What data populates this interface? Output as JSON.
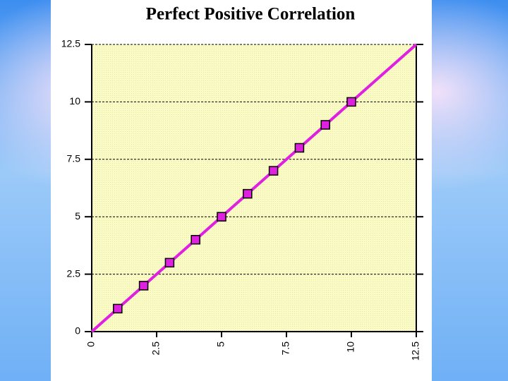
{
  "chart_data": {
    "type": "scatter",
    "title": "Perfect Positive Correlation",
    "x": [
      1,
      2,
      3,
      4,
      5,
      6,
      7,
      8,
      9,
      10
    ],
    "y": [
      1,
      2,
      3,
      4,
      5,
      6,
      7,
      8,
      9,
      10
    ],
    "color": "#e020e0",
    "trend": {
      "x": [
        0,
        12.5
      ],
      "y": [
        0,
        12.5
      ],
      "color": "#e020e0"
    },
    "xlim": [
      0,
      12.5
    ],
    "xticks": [
      0,
      2.5,
      5,
      7.5,
      10,
      12.5
    ],
    "ylim": [
      0,
      12.5
    ],
    "yticks": [
      0,
      2.5,
      5,
      7.5,
      10,
      12.5
    ],
    "grid": true
  }
}
